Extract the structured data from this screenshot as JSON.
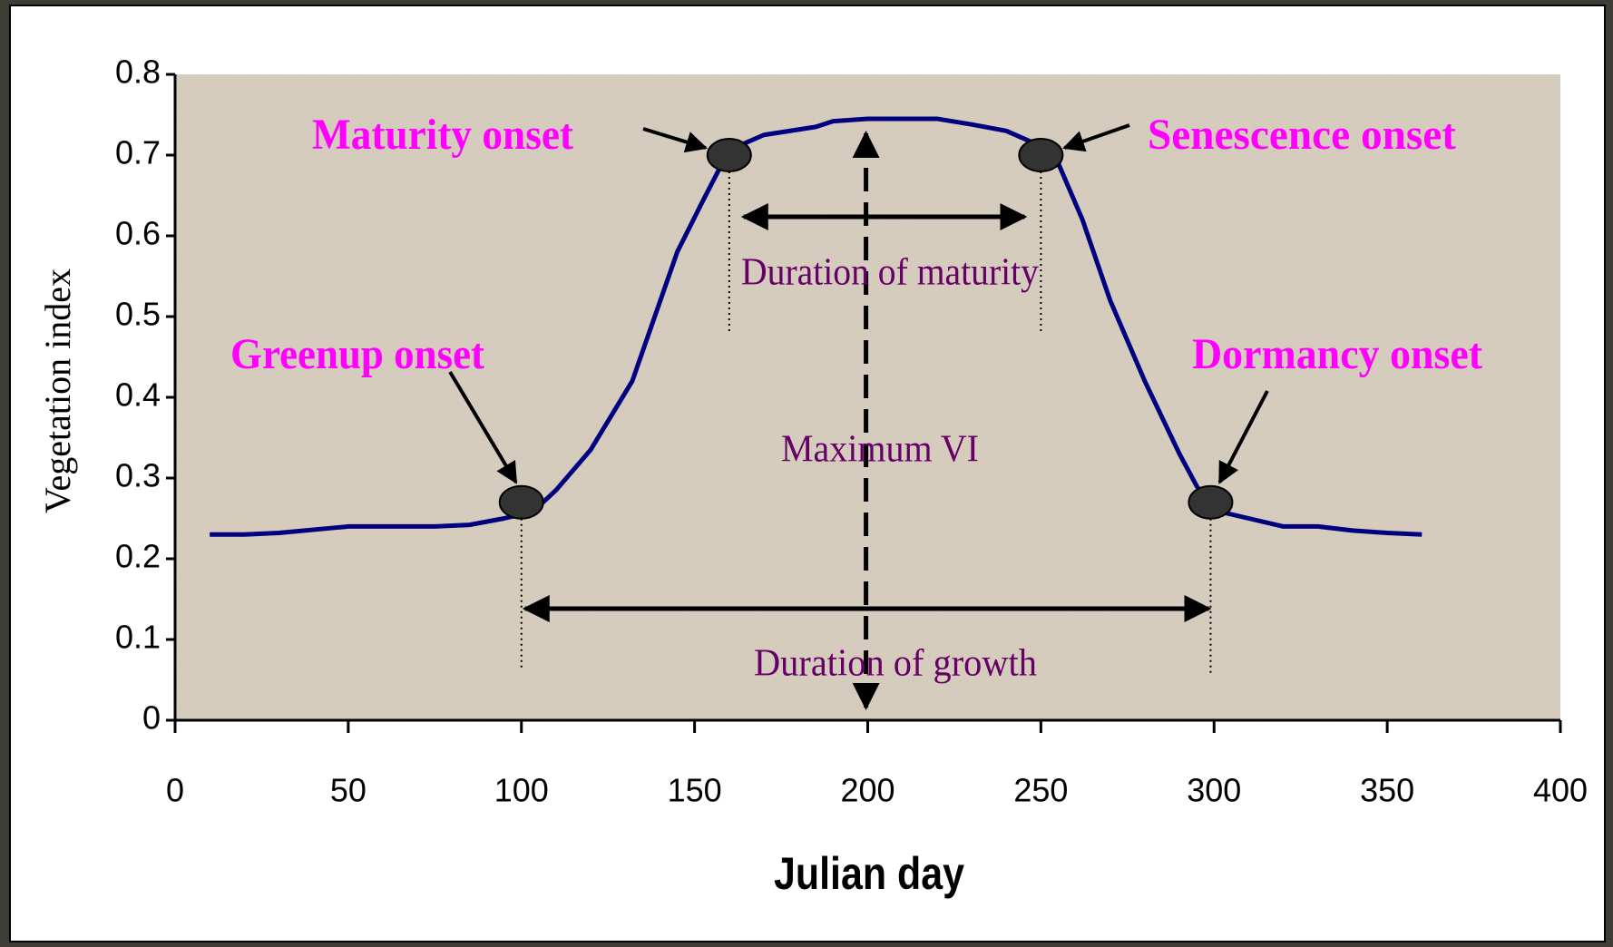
{
  "chart_data": {
    "type": "line",
    "x_label": "Julian day",
    "y_label": "Vegetation index",
    "xlim": [
      0,
      400
    ],
    "ylim": [
      0,
      0.8
    ],
    "xticks": [
      0,
      50,
      100,
      150,
      200,
      250,
      300,
      350,
      400
    ],
    "yticks": [
      0,
      0.1,
      0.2,
      0.3,
      0.4,
      0.5,
      0.6,
      0.7,
      0.8
    ],
    "series": [
      {
        "name": "Vegetation index",
        "color": "#000080",
        "x": [
          10,
          20,
          30,
          45,
          50,
          75,
          85,
          95,
          100,
          105,
          110,
          120,
          132,
          145,
          152,
          158,
          162,
          170,
          185,
          190,
          200,
          210,
          220,
          230,
          240,
          248,
          255,
          262,
          270,
          280,
          290,
          295,
          300,
          310,
          320,
          330,
          340,
          350,
          360
        ],
        "values": [
          0.23,
          0.23,
          0.232,
          0.238,
          0.24,
          0.24,
          0.242,
          0.25,
          0.255,
          0.265,
          0.285,
          0.335,
          0.42,
          0.58,
          0.64,
          0.69,
          0.71,
          0.725,
          0.735,
          0.742,
          0.745,
          0.745,
          0.745,
          0.738,
          0.73,
          0.715,
          0.69,
          0.62,
          0.52,
          0.42,
          0.33,
          0.29,
          0.26,
          0.25,
          0.24,
          0.24,
          0.235,
          0.232,
          0.23
        ]
      }
    ],
    "onsets": [
      {
        "label": "Greenup onset",
        "x": 100,
        "y": 0.27
      },
      {
        "label": "Maturity onset",
        "x": 160,
        "y": 0.7
      },
      {
        "label": "Senescence onset",
        "x": 250,
        "y": 0.7
      },
      {
        "label": "Dormancy onset",
        "x": 299,
        "y": 0.27
      }
    ],
    "annotations": {
      "maturity_duration": "Duration of maturity",
      "max_vi": "Maximum VI",
      "growth_duration": "Duration of growth"
    }
  }
}
